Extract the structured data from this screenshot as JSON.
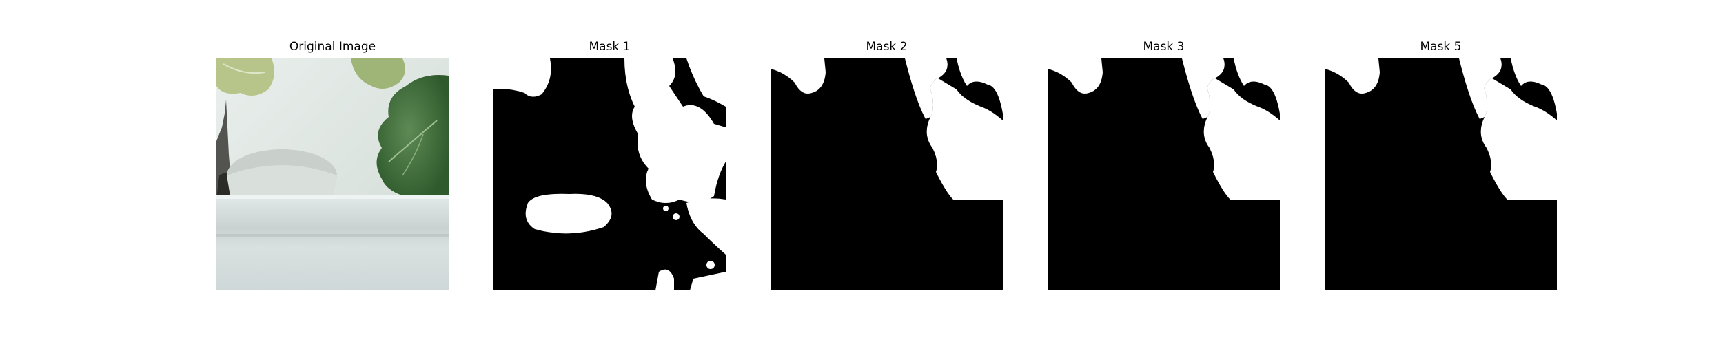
{
  "figure": {
    "panels": [
      {
        "title": "Original Image",
        "content": "photo"
      },
      {
        "title": "Mask 1",
        "content": "mask"
      },
      {
        "title": "Mask 2",
        "content": "mask"
      },
      {
        "title": "Mask 3",
        "content": "mask"
      },
      {
        "title": "Mask 5",
        "content": "mask"
      }
    ]
  },
  "colors": {
    "mask_foreground": "#ffffff",
    "mask_background": "#000000",
    "wall": "#dfe6e3",
    "ledge": "#d6dedd",
    "leaf_dark": "#3f6b3a",
    "leaf_light": "#b9c88e"
  }
}
